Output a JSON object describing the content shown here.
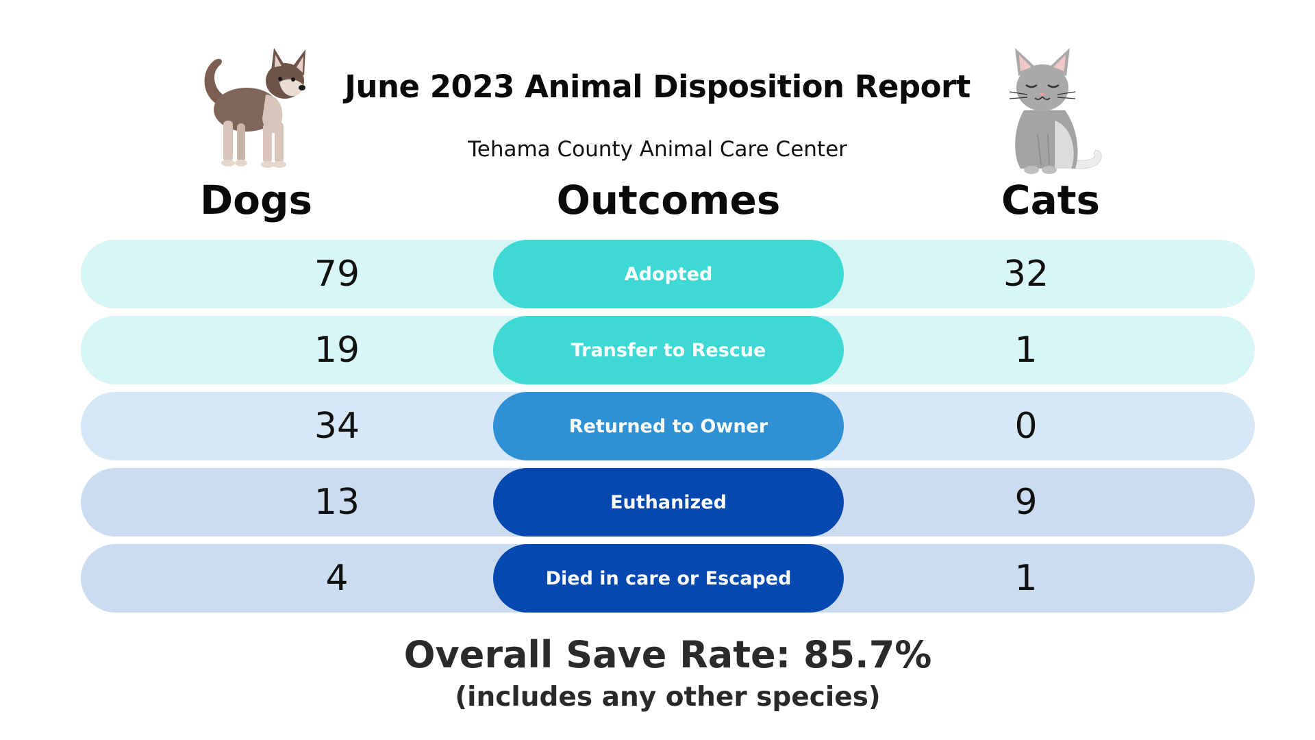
{
  "header": {
    "title": "June 2023 Animal Disposition Report",
    "subtitle": "Tehama County Animal Care Center"
  },
  "columns": {
    "dogs": "Dogs",
    "outcomes": "Outcomes",
    "cats": "Cats"
  },
  "illustrations": {
    "dog": "dog-illustration",
    "cat": "cat-illustration"
  },
  "rows": [
    {
      "outcome": "Adopted",
      "dogs": "79",
      "cats": "32",
      "row_color": "#d8f6f5",
      "pill_color": "#3ed9d5"
    },
    {
      "outcome": "Transfer to Rescue",
      "dogs": "19",
      "cats": "1",
      "row_color": "#d8f6f5",
      "pill_color": "#3ed9d5"
    },
    {
      "outcome": "Returned to Owner",
      "dogs": "34",
      "cats": "0",
      "row_color": "#d6e8f6",
      "pill_color": "#2f90d6"
    },
    {
      "outcome": "Euthanized",
      "dogs": "13",
      "cats": "9",
      "row_color": "#ccdcf0",
      "pill_color": "#0549b0"
    },
    {
      "outcome": "Died in care or Escaped",
      "dogs": "4",
      "cats": "1",
      "row_color": "#ccdcf0",
      "pill_color": "#0549b0"
    }
  ],
  "footer": {
    "save_rate": "Overall Save Rate:  85.7%",
    "note": "(includes any other species)"
  }
}
